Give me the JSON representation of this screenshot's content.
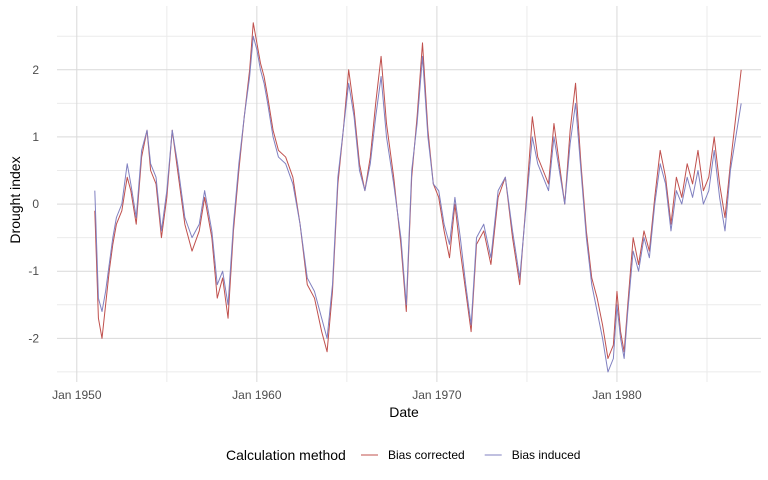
{
  "chart_data": {
    "type": "line",
    "title": "",
    "xlabel": "Date",
    "ylabel": "Drought index",
    "x_ticks": [
      "Jan 1950",
      "Jan 1960",
      "Jan 1970",
      "Jan 1980"
    ],
    "x_tick_years": [
      1950,
      1960,
      1970,
      1980
    ],
    "y_ticks": [
      "-2",
      "-1",
      "0",
      "1",
      "2"
    ],
    "y_tick_values": [
      -2,
      -1,
      0,
      1,
      2
    ],
    "xlim": [
      1948.9,
      1988.0
    ],
    "ylim": [
      -2.65,
      2.95
    ],
    "grid": true,
    "legend": {
      "title": "Calculation method",
      "position": "bottom"
    },
    "series": [
      {
        "name": "Bias corrected",
        "color": "#c0504d",
        "x": [
          1951.0,
          1951.2,
          1951.4,
          1951.6,
          1951.8,
          1952.0,
          1952.2,
          1952.5,
          1952.8,
          1953.0,
          1953.3,
          1953.6,
          1953.9,
          1954.1,
          1954.4,
          1954.7,
          1955.0,
          1955.3,
          1955.6,
          1956.0,
          1956.4,
          1956.8,
          1957.1,
          1957.5,
          1957.8,
          1958.1,
          1958.4,
          1958.7,
          1959.0,
          1959.3,
          1959.6,
          1959.8,
          1960.0,
          1960.2,
          1960.4,
          1960.6,
          1960.9,
          1961.2,
          1961.6,
          1962.0,
          1962.4,
          1962.8,
          1963.2,
          1963.6,
          1963.9,
          1964.2,
          1964.5,
          1964.8,
          1965.1,
          1965.4,
          1965.7,
          1966.0,
          1966.3,
          1966.6,
          1966.9,
          1967.2,
          1967.6,
          1968.0,
          1968.3,
          1968.6,
          1968.9,
          1969.2,
          1969.5,
          1969.8,
          1970.1,
          1970.4,
          1970.7,
          1971.0,
          1971.3,
          1971.6,
          1971.9,
          1972.2,
          1972.6,
          1973.0,
          1973.4,
          1973.8,
          1974.2,
          1974.6,
          1975.0,
          1975.3,
          1975.6,
          1975.9,
          1976.2,
          1976.5,
          1976.8,
          1977.1,
          1977.4,
          1977.7,
          1978.0,
          1978.3,
          1978.6,
          1978.9,
          1979.2,
          1979.5,
          1979.8,
          1980.0,
          1980.2,
          1980.4,
          1980.6,
          1980.9,
          1981.2,
          1981.5,
          1981.8,
          1982.1,
          1982.4,
          1982.7,
          1983.0,
          1983.3,
          1983.6,
          1983.9,
          1984.2,
          1984.5,
          1984.8,
          1985.1,
          1985.4,
          1985.7,
          1986.0,
          1986.3,
          1986.6,
          1986.9
        ],
        "y": [
          -0.1,
          -1.7,
          -2.0,
          -1.5,
          -1.0,
          -0.6,
          -0.3,
          -0.1,
          0.4,
          0.2,
          -0.3,
          0.7,
          1.1,
          0.5,
          0.3,
          -0.5,
          0.1,
          1.1,
          0.5,
          -0.3,
          -0.7,
          -0.4,
          0.1,
          -0.5,
          -1.4,
          -1.1,
          -1.7,
          -0.4,
          0.5,
          1.3,
          2.0,
          2.7,
          2.4,
          2.1,
          1.9,
          1.6,
          1.1,
          0.8,
          0.7,
          0.4,
          -0.3,
          -1.2,
          -1.4,
          -1.9,
          -2.2,
          -1.3,
          0.3,
          1.1,
          2.0,
          1.4,
          0.6,
          0.2,
          0.7,
          1.5,
          2.2,
          1.2,
          0.4,
          -0.6,
          -1.6,
          0.4,
          1.3,
          2.4,
          1.1,
          0.3,
          0.1,
          -0.4,
          -0.8,
          0.0,
          -0.7,
          -1.3,
          -1.9,
          -0.6,
          -0.4,
          -0.9,
          0.1,
          0.4,
          -0.5,
          -1.2,
          0.2,
          1.3,
          0.7,
          0.5,
          0.3,
          1.2,
          0.6,
          0.0,
          1.1,
          1.8,
          0.6,
          -0.4,
          -1.1,
          -1.4,
          -1.8,
          -2.3,
          -2.1,
          -1.3,
          -1.9,
          -2.2,
          -1.5,
          -0.5,
          -0.9,
          -0.4,
          -0.7,
          0.1,
          0.8,
          0.4,
          -0.3,
          0.4,
          0.1,
          0.6,
          0.3,
          0.8,
          0.2,
          0.4,
          1.0,
          0.3,
          -0.2,
          0.6,
          1.3,
          2.0
        ]
      },
      {
        "name": "Bias induced",
        "color": "#8080c0",
        "x": [
          1951.0,
          1951.2,
          1951.4,
          1951.6,
          1951.8,
          1952.0,
          1952.2,
          1952.5,
          1952.8,
          1953.0,
          1953.3,
          1953.6,
          1953.9,
          1954.1,
          1954.4,
          1954.7,
          1955.0,
          1955.3,
          1955.6,
          1956.0,
          1956.4,
          1956.8,
          1957.1,
          1957.5,
          1957.8,
          1958.1,
          1958.4,
          1958.7,
          1959.0,
          1959.3,
          1959.6,
          1959.8,
          1960.0,
          1960.2,
          1960.4,
          1960.6,
          1960.9,
          1961.2,
          1961.6,
          1962.0,
          1962.4,
          1962.8,
          1963.2,
          1963.6,
          1963.9,
          1964.2,
          1964.5,
          1964.8,
          1965.1,
          1965.4,
          1965.7,
          1966.0,
          1966.3,
          1966.6,
          1966.9,
          1967.2,
          1967.6,
          1968.0,
          1968.3,
          1968.6,
          1968.9,
          1969.2,
          1969.5,
          1969.8,
          1970.1,
          1970.4,
          1970.7,
          1971.0,
          1971.3,
          1971.6,
          1971.9,
          1972.2,
          1972.6,
          1973.0,
          1973.4,
          1973.8,
          1974.2,
          1974.6,
          1975.0,
          1975.3,
          1975.6,
          1975.9,
          1976.2,
          1976.5,
          1976.8,
          1977.1,
          1977.4,
          1977.7,
          1978.0,
          1978.3,
          1978.6,
          1978.9,
          1979.2,
          1979.5,
          1979.8,
          1980.0,
          1980.2,
          1980.4,
          1980.6,
          1980.9,
          1981.2,
          1981.5,
          1981.8,
          1982.1,
          1982.4,
          1982.7,
          1983.0,
          1983.3,
          1983.6,
          1983.9,
          1984.2,
          1984.5,
          1984.8,
          1985.1,
          1985.4,
          1985.7,
          1986.0,
          1986.3,
          1986.6,
          1986.9
        ],
        "y": [
          0.2,
          -1.4,
          -1.6,
          -1.3,
          -0.9,
          -0.5,
          -0.2,
          0.0,
          0.6,
          0.3,
          -0.2,
          0.8,
          1.1,
          0.6,
          0.4,
          -0.4,
          0.2,
          1.1,
          0.6,
          -0.2,
          -0.5,
          -0.3,
          0.2,
          -0.4,
          -1.2,
          -1.0,
          -1.5,
          -0.3,
          0.6,
          1.3,
          1.9,
          2.5,
          2.3,
          2.0,
          1.8,
          1.5,
          1.0,
          0.7,
          0.6,
          0.3,
          -0.3,
          -1.1,
          -1.3,
          -1.7,
          -2.0,
          -1.2,
          0.4,
          1.1,
          1.8,
          1.3,
          0.5,
          0.2,
          0.6,
          1.3,
          1.9,
          1.0,
          0.3,
          -0.5,
          -1.5,
          0.5,
          1.2,
          2.2,
          1.0,
          0.3,
          0.2,
          -0.3,
          -0.6,
          0.1,
          -0.5,
          -1.2,
          -1.8,
          -0.5,
          -0.3,
          -0.8,
          0.2,
          0.4,
          -0.4,
          -1.1,
          0.1,
          1.0,
          0.6,
          0.4,
          0.2,
          1.0,
          0.5,
          0.0,
          0.9,
          1.5,
          0.5,
          -0.5,
          -1.2,
          -1.6,
          -2.0,
          -2.5,
          -2.3,
          -1.5,
          -2.0,
          -2.3,
          -1.6,
          -0.7,
          -1.0,
          -0.5,
          -0.8,
          0.0,
          0.6,
          0.3,
          -0.4,
          0.2,
          0.0,
          0.4,
          0.1,
          0.5,
          0.0,
          0.2,
          0.8,
          0.1,
          -0.4,
          0.5,
          1.0,
          1.5
        ]
      }
    ]
  }
}
